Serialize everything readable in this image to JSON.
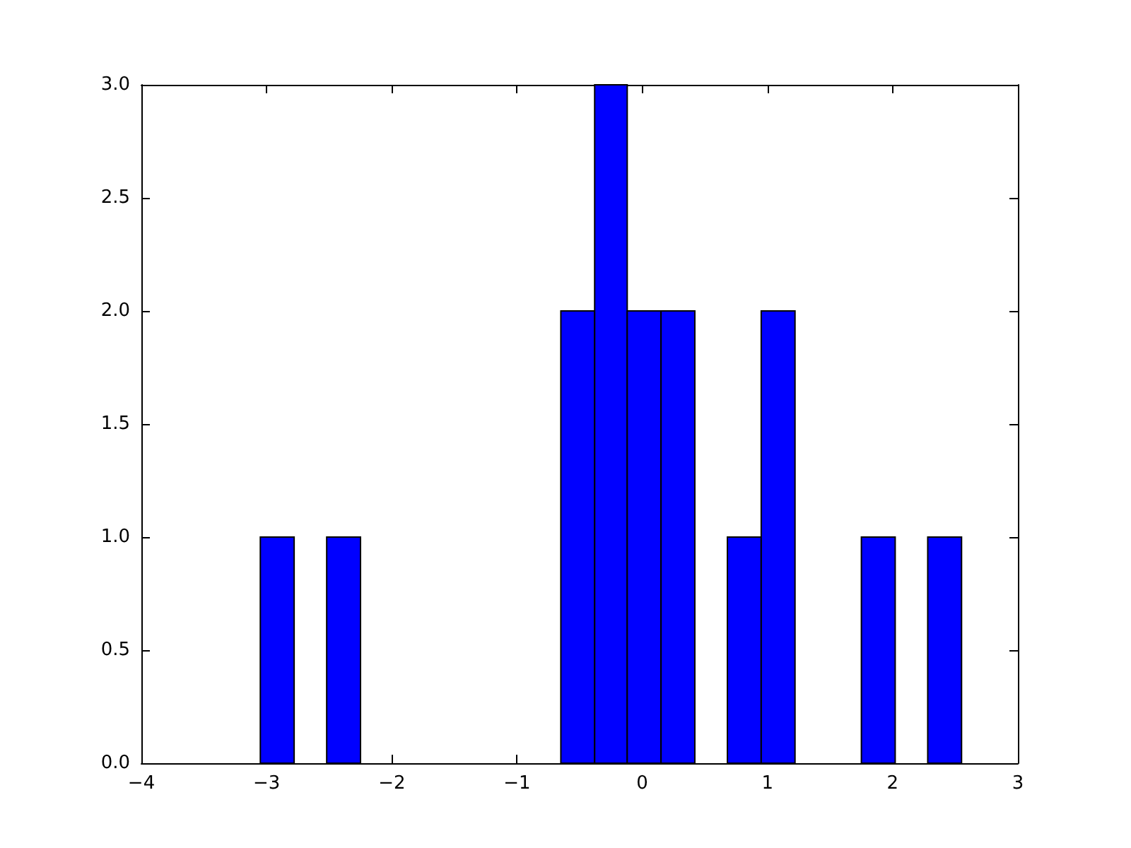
{
  "chart_data": {
    "type": "histogram",
    "bins": [
      -3.05,
      -2.78,
      -2.52,
      -2.25,
      -0.65,
      -0.38,
      -0.12,
      0.15,
      0.42,
      0.68,
      0.95,
      1.22,
      1.75,
      2.02,
      2.28,
      2.55
    ],
    "values": [
      1,
      0,
      1,
      0,
      2,
      3,
      2,
      2,
      0,
      1,
      2,
      0,
      1,
      0,
      1
    ],
    "color": "#0000ff",
    "xlim": [
      -4,
      3
    ],
    "xticks": [
      {
        "value": -4,
        "label": "−4"
      },
      {
        "value": -3,
        "label": "−3"
      },
      {
        "value": -2,
        "label": "−2"
      },
      {
        "value": -1,
        "label": "−1"
      },
      0,
      1,
      2,
      3
    ],
    "ylim": [
      0,
      3
    ],
    "yticks": [
      {
        "value": 0,
        "label": "0.0"
      },
      {
        "value": 0.5,
        "label": "0.5"
      },
      {
        "value": 1,
        "label": "1.0"
      },
      {
        "value": 1.5,
        "label": "1.5"
      },
      {
        "value": 2,
        "label": "2.0"
      },
      {
        "value": 2.5,
        "label": "2.5"
      },
      {
        "value": 3,
        "label": "3.0"
      }
    ]
  }
}
